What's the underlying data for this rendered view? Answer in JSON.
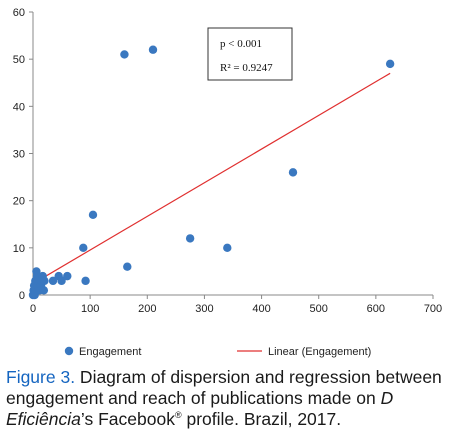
{
  "chart_data": {
    "type": "scatter",
    "title": "",
    "xlabel": "",
    "ylabel": "",
    "xlim": [
      0,
      700
    ],
    "ylim": [
      0,
      60
    ],
    "xticks": [
      "0",
      "100",
      "200",
      "300",
      "400",
      "500",
      "600",
      "700"
    ],
    "yticks": [
      "0",
      "10",
      "20",
      "30",
      "40",
      "50",
      "60"
    ],
    "grid": false,
    "legend_position": "bottom",
    "series": [
      {
        "name": "Engagement",
        "marker_color": "#3a78c0",
        "points": [
          [
            0,
            0
          ],
          [
            1,
            1
          ],
          [
            2,
            2
          ],
          [
            3,
            0
          ],
          [
            4,
            3
          ],
          [
            5,
            1
          ],
          [
            6,
            5
          ],
          [
            7,
            4
          ],
          [
            8,
            2
          ],
          [
            9,
            1
          ],
          [
            10,
            3
          ],
          [
            12,
            1
          ],
          [
            14,
            2
          ],
          [
            15,
            3
          ],
          [
            17,
            4
          ],
          [
            19,
            1
          ],
          [
            20,
            3
          ],
          [
            35,
            3
          ],
          [
            45,
            4
          ],
          [
            50,
            3
          ],
          [
            60,
            4
          ],
          [
            88,
            10
          ],
          [
            92,
            3
          ],
          [
            105,
            17
          ],
          [
            160,
            51
          ],
          [
            165,
            6
          ],
          [
            210,
            52
          ],
          [
            275,
            12
          ],
          [
            340,
            10
          ],
          [
            455,
            26
          ],
          [
            625,
            49
          ]
        ]
      }
    ],
    "trendline": {
      "name": "Linear (Engagement)",
      "type": "linear",
      "color": "#e03030",
      "from": [
        0,
        2.4
      ],
      "to": [
        625,
        47
      ]
    },
    "stats_box": {
      "p_value": "p < 0.001",
      "r_squared": "R² = 0.9247"
    }
  },
  "caption": {
    "figure_label": "Figure 3.",
    "text_1": " Diagram of dispersion and regression between engagement and reach of publications made on ",
    "italic_name": "D Eficiência",
    "text_2": "’s Facebook",
    "registered": "®",
    "text_3": " profile. Brazil, 2017."
  }
}
